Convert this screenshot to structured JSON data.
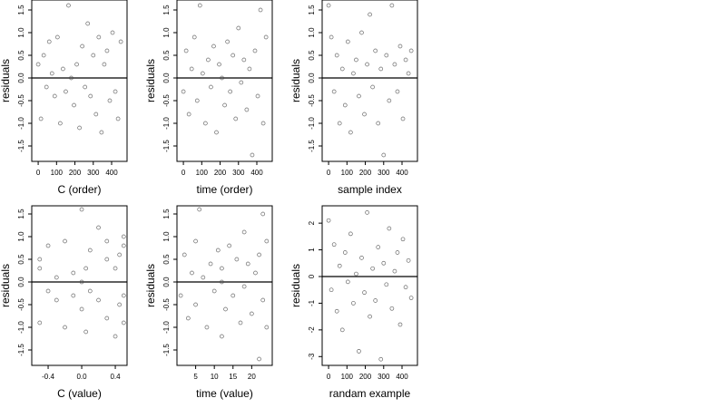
{
  "chart_data": [
    {
      "type": "scatter",
      "xlabel": "C (order)",
      "ylabel": "residuals",
      "color": "#444444",
      "reference_line": 0,
      "xlim": [
        -35,
        484
      ],
      "ylim": [
        -1.84,
        1.72
      ],
      "xticks": [
        0,
        100,
        200,
        300,
        400
      ],
      "yticks": [
        -1.5,
        {
          "value": -1,
          "label": "-1.0"
        },
        -0.5,
        {
          "value": 0,
          "label": "0.0"
        },
        0.5,
        {
          "value": 1,
          "label": "1.0"
        },
        1.5
      ],
      "x": [
        0,
        15,
        30,
        45,
        60,
        75,
        90,
        105,
        120,
        135,
        150,
        165,
        180,
        195,
        210,
        225,
        240,
        255,
        270,
        285,
        300,
        315,
        330,
        345,
        360,
        375,
        390,
        405,
        420,
        435,
        450
      ],
      "y": [
        0.3,
        -0.9,
        0.5,
        -0.2,
        0.8,
        0.1,
        -0.4,
        0.9,
        -1.0,
        0.2,
        -0.3,
        1.6,
        0.0,
        -0.6,
        0.3,
        -1.1,
        0.7,
        -0.2,
        1.2,
        -0.4,
        0.5,
        -0.8,
        0.9,
        -1.2,
        0.3,
        0.6,
        -0.5,
        1.0,
        -0.3,
        -0.9,
        0.8
      ]
    },
    {
      "type": "scatter",
      "xlabel": "time (order)",
      "ylabel": "residuals",
      "color": "#444444",
      "reference_line": 0,
      "xlim": [
        -35,
        484
      ],
      "ylim": [
        -1.84,
        1.72
      ],
      "xticks": [
        0,
        100,
        200,
        300,
        400
      ],
      "yticks": [
        -1.5,
        {
          "value": -1,
          "label": "-1.0"
        },
        -0.5,
        {
          "value": 0,
          "label": "0.0"
        },
        0.5,
        {
          "value": 1,
          "label": "1.0"
        },
        1.5
      ],
      "x": [
        0,
        15,
        30,
        45,
        60,
        75,
        90,
        105,
        120,
        135,
        150,
        165,
        180,
        195,
        210,
        225,
        240,
        255,
        270,
        285,
        300,
        315,
        330,
        345,
        360,
        375,
        390,
        405,
        420,
        435,
        450
      ],
      "y": [
        -0.3,
        0.6,
        -0.8,
        0.2,
        0.9,
        -0.5,
        1.6,
        0.1,
        -1.0,
        0.4,
        -0.2,
        0.7,
        -1.2,
        0.3,
        0.0,
        -0.6,
        0.8,
        -0.3,
        0.5,
        -0.9,
        1.1,
        -0.1,
        0.4,
        -0.7,
        0.2,
        -1.7,
        0.6,
        -0.4,
        1.5,
        -1.0,
        0.9
      ]
    },
    {
      "type": "scatter",
      "xlabel": "sample index",
      "ylabel": "residuals",
      "color": "#444444",
      "reference_line": 0,
      "xlim": [
        -35,
        484
      ],
      "ylim": [
        -1.84,
        1.72
      ],
      "xticks": [
        0,
        100,
        200,
        300,
        400
      ],
      "yticks": [
        -1.5,
        {
          "value": -1,
          "label": "-1.0"
        },
        -0.5,
        {
          "value": 0,
          "label": "0.0"
        },
        0.5,
        {
          "value": 1,
          "label": "1.0"
        },
        1.5
      ],
      "x": [
        0,
        15,
        30,
        45,
        60,
        75,
        90,
        105,
        120,
        135,
        150,
        165,
        180,
        195,
        210,
        225,
        240,
        255,
        270,
        285,
        300,
        315,
        330,
        345,
        360,
        375,
        390,
        405,
        420,
        435,
        450
      ],
      "y": [
        1.6,
        0.9,
        -0.3,
        0.5,
        -1.0,
        0.2,
        -0.6,
        0.8,
        -1.2,
        0.1,
        0.4,
        -0.4,
        1.0,
        -0.8,
        0.3,
        1.4,
        -0.2,
        0.6,
        -1.0,
        0.2,
        -1.7,
        0.5,
        -0.5,
        1.6,
        0.3,
        -0.3,
        0.7,
        -0.9,
        0.4,
        0.1,
        0.6
      ]
    },
    {
      "type": "scatter",
      "xlabel": "C (value)",
      "ylabel": "residuals",
      "color": "#444444",
      "reference_line": 0,
      "xlim": [
        -0.595,
        0.54
      ],
      "ylim": [
        -1.84,
        1.68
      ],
      "xticks": [
        -0.4,
        {
          "value": 0,
          "label": "0.0"
        },
        0.4
      ],
      "yticks": [
        -1.5,
        {
          "value": -1,
          "label": "-1.0"
        },
        -0.5,
        {
          "value": 0,
          "label": "0.0"
        },
        0.5,
        {
          "value": 1,
          "label": "1.0"
        },
        1.5
      ],
      "x": [
        -0.5,
        -0.5,
        -0.5,
        -0.4,
        -0.4,
        -0.3,
        -0.3,
        -0.2,
        -0.2,
        -0.1,
        -0.1,
        0.0,
        0.0,
        0.0,
        0.05,
        0.05,
        0.1,
        0.1,
        0.2,
        0.2,
        0.3,
        0.3,
        0.3,
        0.4,
        0.4,
        0.45,
        0.45,
        0.5,
        0.5,
        0.5,
        0.5
      ],
      "y": [
        0.3,
        -0.9,
        0.5,
        -0.2,
        0.8,
        0.1,
        -0.4,
        0.9,
        -1.0,
        0.2,
        -0.3,
        1.6,
        0.0,
        -0.6,
        0.3,
        -1.1,
        0.7,
        -0.2,
        1.2,
        -0.4,
        0.5,
        -0.8,
        0.9,
        -1.2,
        0.3,
        0.6,
        -0.5,
        1.0,
        -0.3,
        -0.9,
        0.8
      ]
    },
    {
      "type": "scatter",
      "xlabel": "time (value)",
      "ylabel": "residuals",
      "color": "#444444",
      "reference_line": 0,
      "xlim": [
        0,
        25.5
      ],
      "ylim": [
        -1.84,
        1.68
      ],
      "xticks": [
        5,
        10,
        15,
        20
      ],
      "yticks": [
        -1.5,
        {
          "value": -1,
          "label": "-1.0"
        },
        -0.5,
        {
          "value": 0,
          "label": "0.0"
        },
        0.5,
        {
          "value": 1,
          "label": "1.0"
        },
        1.5
      ],
      "x": [
        1,
        2,
        3,
        4,
        5,
        5,
        6,
        7,
        8,
        9,
        10,
        11,
        12,
        12,
        12,
        13,
        14,
        15,
        16,
        17,
        18,
        18,
        19,
        20,
        21,
        22,
        22,
        23,
        23,
        24,
        24
      ],
      "y": [
        -0.3,
        0.6,
        -0.8,
        0.2,
        0.9,
        -0.5,
        1.6,
        0.1,
        -1.0,
        0.4,
        -0.2,
        0.7,
        -1.2,
        0.3,
        0.0,
        -0.6,
        0.8,
        -0.3,
        0.5,
        -0.9,
        1.1,
        -0.1,
        0.4,
        -0.7,
        0.2,
        -1.7,
        0.6,
        -0.4,
        1.5,
        -1.0,
        0.9
      ]
    },
    {
      "type": "scatter",
      "xlabel": "randam example",
      "ylabel": "residuals",
      "color": "#444444",
      "reference_line": 0,
      "xlim": [
        -35,
        484
      ],
      "ylim": [
        -3.33,
        2.65
      ],
      "xticks": [
        0,
        100,
        200,
        300,
        400
      ],
      "yticks": [
        -3,
        -2,
        -1,
        0,
        1,
        2
      ],
      "x": [
        0,
        15,
        30,
        45,
        60,
        75,
        90,
        105,
        120,
        135,
        150,
        165,
        180,
        195,
        210,
        225,
        240,
        255,
        270,
        285,
        300,
        315,
        330,
        345,
        360,
        375,
        390,
        405,
        420,
        435,
        450
      ],
      "y": [
        2.1,
        -0.5,
        1.2,
        -1.3,
        0.4,
        -2.0,
        0.9,
        -0.2,
        1.6,
        -1.0,
        0.1,
        -2.8,
        0.7,
        -0.6,
        2.4,
        -1.5,
        0.3,
        -0.9,
        1.1,
        -3.1,
        0.5,
        -0.3,
        1.8,
        -1.2,
        0.2,
        0.9,
        -1.8,
        1.4,
        -0.4,
        0.6,
        -0.8
      ]
    }
  ]
}
